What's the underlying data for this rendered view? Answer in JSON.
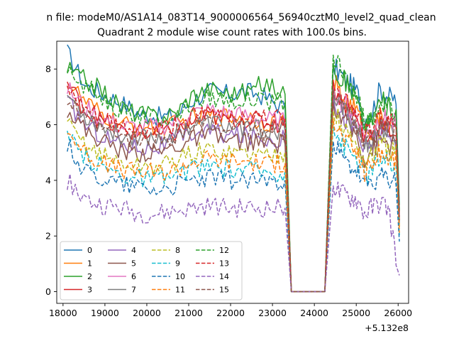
{
  "figure": {
    "suptitle": "n file: modeM0/AS1A14_083T14_9000006564_56940cztM0_level2_quad_clean",
    "title": "Quadrant 2 module wise count rates with 100.0s bins.",
    "offset_label": "+5.132e8"
  },
  "chart_data": {
    "type": "line",
    "title": "Quadrant 2 module wise count rates with 100.0s bins.",
    "xlabel": "",
    "ylabel": "",
    "x_offset": 513200000,
    "xlim": [
      17850,
      26250
    ],
    "ylim": [
      -0.42,
      9.0
    ],
    "xticks": [
      18000,
      19000,
      20000,
      21000,
      22000,
      23000,
      24000,
      25000,
      26000
    ],
    "xtick_labels": [
      "18000",
      "19000",
      "20000",
      "21000",
      "22000",
      "23000",
      "24000",
      "25000",
      "26000"
    ],
    "yticks": [
      0,
      2,
      4,
      6,
      8
    ],
    "ytick_labels": [
      "0",
      "2",
      "4",
      "6",
      "8"
    ],
    "grid": false,
    "legend_position": "lower-left",
    "legend_columns": 4,
    "gaps": {
      "drop_start": 23300,
      "zero_start": 23450,
      "zero_end": 24250,
      "recover_end": 24450
    },
    "series": [
      {
        "name": "0",
        "style": "solid",
        "color": "#1f77b4",
        "seg1": [
          8.6,
          7.4,
          7.1,
          6.8,
          6.4,
          6.3,
          6.3,
          6.9,
          7.2,
          7.1,
          7.2,
          7.0,
          6.6
        ],
        "seg2": [
          8.1,
          7.8,
          7.5,
          7.2,
          6.2,
          6.5,
          7.3,
          7.0,
          6.9
        ]
      },
      {
        "name": "1",
        "style": "solid",
        "color": "#ff7f0e",
        "seg1": [
          7.6,
          6.8,
          6.3,
          6.0,
          5.9,
          5.9,
          6.0,
          6.2,
          6.3,
          6.3,
          6.3,
          6.1,
          6.1
        ],
        "seg2": [
          7.6,
          7.0,
          6.8,
          6.5,
          5.6,
          5.9,
          6.2,
          6.0,
          5.8
        ]
      },
      {
        "name": "2",
        "style": "solid",
        "color": "#2ca02c",
        "seg1": [
          8.0,
          7.6,
          7.2,
          6.6,
          6.4,
          6.3,
          6.4,
          7.1,
          7.3,
          7.1,
          7.2,
          7.5,
          7.1
        ],
        "seg2": [
          8.2,
          7.7,
          7.4,
          6.9,
          5.9,
          6.2,
          6.9,
          6.6,
          6.4
        ]
      },
      {
        "name": "3",
        "style": "solid",
        "color": "#d62728",
        "seg1": [
          7.5,
          6.5,
          6.1,
          5.8,
          5.7,
          5.6,
          5.7,
          6.1,
          6.3,
          6.2,
          6.2,
          6.1,
          6.0
        ],
        "seg2": [
          7.5,
          6.8,
          6.6,
          6.2,
          5.4,
          5.7,
          6.0,
          5.9,
          5.7
        ]
      },
      {
        "name": "4",
        "style": "solid",
        "color": "#9467bd",
        "seg1": [
          6.8,
          6.0,
          5.6,
          5.3,
          5.2,
          5.2,
          5.4,
          5.7,
          5.8,
          5.6,
          5.6,
          5.5,
          5.5
        ],
        "seg2": [
          7.0,
          6.4,
          6.1,
          5.8,
          5.0,
          5.3,
          5.7,
          5.5,
          5.4
        ]
      },
      {
        "name": "5",
        "style": "solid",
        "color": "#8c564b",
        "seg1": [
          6.6,
          5.8,
          5.4,
          5.1,
          5.0,
          5.0,
          5.2,
          5.5,
          5.6,
          5.4,
          5.4,
          5.3,
          5.3
        ],
        "seg2": [
          6.8,
          6.2,
          5.9,
          5.6,
          4.8,
          5.1,
          5.5,
          5.3,
          5.2
        ]
      },
      {
        "name": "6",
        "style": "solid",
        "color": "#e377c2",
        "seg1": [
          7.3,
          6.6,
          6.2,
          5.9,
          5.9,
          5.9,
          6.1,
          6.4,
          6.5,
          6.4,
          6.3,
          6.2,
          6.1
        ],
        "seg2": [
          7.4,
          6.9,
          6.6,
          6.3,
          5.6,
          5.8,
          6.3,
          6.1,
          6.0
        ]
      },
      {
        "name": "7",
        "style": "solid",
        "color": "#7f7f7f",
        "seg1": [
          7.1,
          6.3,
          5.9,
          5.6,
          5.6,
          5.5,
          5.7,
          6.0,
          6.1,
          5.9,
          5.9,
          5.8,
          5.8
        ],
        "seg2": [
          7.2,
          6.6,
          6.3,
          6.0,
          5.2,
          5.5,
          5.9,
          5.7,
          5.6
        ]
      },
      {
        "name": "8",
        "style": "dashed",
        "color": "#bcbd22",
        "seg1": [
          6.0,
          5.3,
          4.9,
          4.6,
          4.5,
          4.5,
          4.7,
          5.0,
          5.1,
          5.0,
          5.0,
          4.9,
          5.0
        ],
        "seg2": [
          6.5,
          6.0,
          5.6,
          5.3,
          4.6,
          4.9,
          5.3,
          5.1,
          5.0
        ]
      },
      {
        "name": "9",
        "style": "dashed",
        "color": "#17becf",
        "seg1": [
          5.5,
          4.8,
          4.5,
          4.2,
          4.1,
          4.0,
          4.2,
          4.4,
          4.5,
          4.4,
          4.4,
          4.3,
          4.3
        ],
        "seg2": [
          6.0,
          5.4,
          5.1,
          4.8,
          4.1,
          4.4,
          4.8,
          4.6,
          4.5
        ]
      },
      {
        "name": "10",
        "style": "dashed",
        "color": "#1f77b4",
        "seg1": [
          5.3,
          4.3,
          4.1,
          3.9,
          3.8,
          3.7,
          3.8,
          4.0,
          4.1,
          4.0,
          4.0,
          4.0,
          4.0
        ],
        "seg2": [
          5.4,
          4.8,
          4.5,
          4.3,
          3.7,
          4.0,
          4.1,
          4.0,
          4.0
        ]
      },
      {
        "name": "11",
        "style": "dashed",
        "color": "#ff7f0e",
        "seg1": [
          5.8,
          5.0,
          4.6,
          4.4,
          4.3,
          4.3,
          4.4,
          4.7,
          4.8,
          4.7,
          4.7,
          4.6,
          4.6
        ],
        "seg2": [
          6.2,
          5.6,
          5.3,
          5.0,
          4.3,
          4.6,
          5.0,
          4.8,
          4.7
        ]
      },
      {
        "name": "12",
        "style": "dashed",
        "color": "#2ca02c",
        "seg1": [
          7.8,
          7.4,
          7.0,
          6.5,
          6.3,
          6.2,
          6.3,
          6.8,
          7.0,
          6.9,
          6.9,
          6.8,
          6.8
        ],
        "seg2": [
          8.5,
          7.9,
          7.5,
          7.0,
          6.0,
          6.3,
          6.8,
          6.6,
          6.4
        ]
      },
      {
        "name": "13",
        "style": "dashed",
        "color": "#d62728",
        "seg1": [
          7.2,
          6.5,
          6.2,
          5.9,
          5.8,
          5.8,
          6.0,
          6.3,
          6.4,
          6.3,
          6.3,
          6.2,
          6.2
        ],
        "seg2": [
          7.6,
          7.2,
          6.8,
          6.4,
          5.6,
          5.9,
          6.3,
          6.1,
          6.0
        ]
      },
      {
        "name": "14",
        "style": "dashed",
        "color": "#9467bd",
        "seg1": [
          4.0,
          3.3,
          3.1,
          3.0,
          2.8,
          2.8,
          2.9,
          3.0,
          3.1,
          3.0,
          3.0,
          3.0,
          3.0
        ],
        "seg2": [
          3.8,
          3.5,
          3.4,
          3.3,
          2.8,
          3.0,
          3.2,
          3.0,
          1.3
        ]
      },
      {
        "name": "15",
        "style": "dashed",
        "color": "#8c564b",
        "seg1": [
          6.9,
          6.2,
          5.8,
          5.5,
          5.4,
          5.4,
          5.6,
          5.9,
          6.0,
          5.9,
          5.8,
          5.7,
          5.7
        ],
        "seg2": [
          7.3,
          6.7,
          6.4,
          6.0,
          5.3,
          5.6,
          6.0,
          5.8,
          5.7
        ]
      }
    ]
  }
}
